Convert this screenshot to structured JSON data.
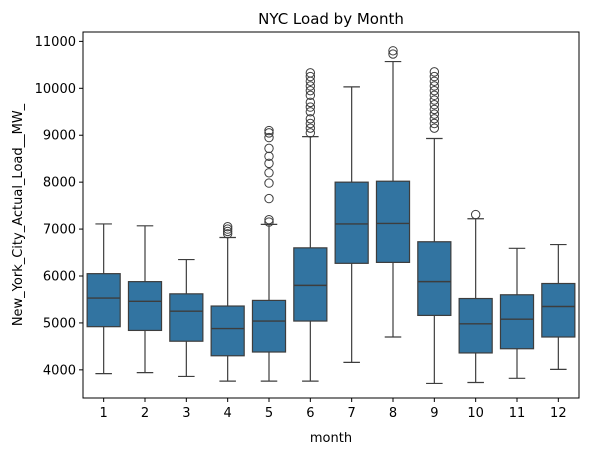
{
  "chart_data": {
    "type": "box",
    "title": "NYC Load by Month",
    "xlabel": "month",
    "ylabel": "New_York_City_Actual_Load__MW_",
    "ylim": [
      3400,
      11200
    ],
    "yticks": [
      4000,
      5000,
      6000,
      7000,
      8000,
      9000,
      10000,
      11000
    ],
    "grid": false,
    "box_color": "#3274a1",
    "line_color": "#3d3d3d",
    "categories": [
      "1",
      "2",
      "3",
      "4",
      "5",
      "6",
      "7",
      "8",
      "9",
      "10",
      "11",
      "12"
    ],
    "boxes": [
      {
        "month": "1",
        "whisker_low": 3920,
        "q1": 4920,
        "median": 5530,
        "q3": 6050,
        "whisker_high": 7110,
        "outliers": []
      },
      {
        "month": "2",
        "whisker_low": 3940,
        "q1": 4840,
        "median": 5460,
        "q3": 5880,
        "whisker_high": 7070,
        "outliers": []
      },
      {
        "month": "3",
        "whisker_low": 3860,
        "q1": 4610,
        "median": 5250,
        "q3": 5620,
        "whisker_high": 6350,
        "outliers": []
      },
      {
        "month": "4",
        "whisker_low": 3760,
        "q1": 4300,
        "median": 4880,
        "q3": 5360,
        "whisker_high": 6820,
        "outliers": [
          6900,
          6950,
          7000,
          7050
        ]
      },
      {
        "month": "5",
        "whisker_low": 3760,
        "q1": 4380,
        "median": 5040,
        "q3": 5480,
        "whisker_high": 7100,
        "outliers": [
          7150,
          7200,
          7650,
          7980,
          8200,
          8400,
          8550,
          8720,
          8950,
          9050,
          9100
        ]
      },
      {
        "month": "6",
        "whisker_low": 3760,
        "q1": 5040,
        "median": 5800,
        "q3": 6600,
        "whisker_high": 8970,
        "outliers": [
          9050,
          9150,
          9250,
          9350,
          9500,
          9600,
          9700,
          9850,
          9950,
          10050,
          10150,
          10250,
          10330
        ]
      },
      {
        "month": "7",
        "whisker_low": 4160,
        "q1": 6270,
        "median": 7110,
        "q3": 8000,
        "whisker_high": 10030,
        "outliers": []
      },
      {
        "month": "8",
        "whisker_low": 4700,
        "q1": 6290,
        "median": 7120,
        "q3": 8020,
        "whisker_high": 10570,
        "outliers": [
          10730,
          10800
        ]
      },
      {
        "month": "9",
        "whisker_low": 3710,
        "q1": 5160,
        "median": 5880,
        "q3": 6730,
        "whisker_high": 8930,
        "outliers": [
          9150,
          9250,
          9350,
          9450,
          9550,
          9650,
          9750,
          9850,
          9950,
          10050,
          10150,
          10250,
          10350
        ]
      },
      {
        "month": "10",
        "whisker_low": 3730,
        "q1": 4360,
        "median": 4980,
        "q3": 5520,
        "whisker_high": 7220,
        "outliers": [
          7310
        ]
      },
      {
        "month": "11",
        "whisker_low": 3820,
        "q1": 4450,
        "median": 5080,
        "q3": 5600,
        "whisker_high": 6590,
        "outliers": []
      },
      {
        "month": "12",
        "whisker_low": 4010,
        "q1": 4700,
        "median": 5350,
        "q3": 5840,
        "whisker_high": 6670,
        "outliers": []
      }
    ]
  }
}
